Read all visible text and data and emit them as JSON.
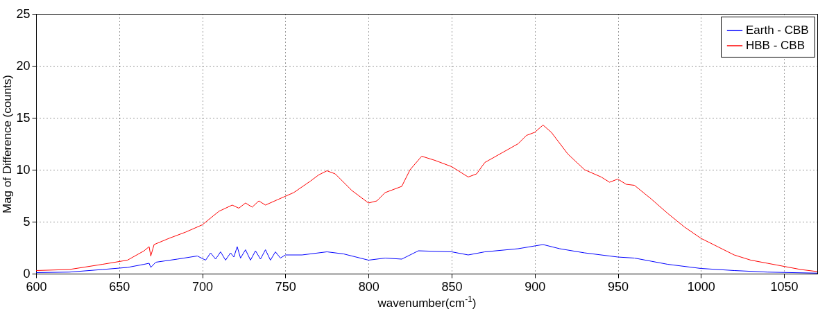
{
  "chart_data": {
    "type": "line",
    "xlabel": "wavenumber(cm$^{-1}$)",
    "ylabel": "Mag of Difference (counts)",
    "xlim": [
      600,
      1070
    ],
    "xticks": [
      600,
      650,
      700,
      750,
      800,
      850,
      900,
      950,
      1000,
      1050
    ],
    "ylim": [
      0,
      25
    ],
    "yticks": [
      0,
      5,
      10,
      15,
      20,
      25
    ],
    "grid": true,
    "legend": "top right",
    "line_style": "solid",
    "series": [
      {
        "name": "Earth - CBB",
        "color": "#0000ff",
        "x": [
          600,
          620,
          640,
          655,
          665,
          668,
          669,
          672,
          685,
          697,
          702,
          705,
          708,
          711,
          714,
          717,
          719,
          721,
          723,
          726,
          729,
          732,
          735,
          738,
          741,
          744,
          747,
          750,
          760,
          775,
          785,
          800,
          810,
          820,
          830,
          850,
          860,
          870,
          890,
          905,
          915,
          930,
          950,
          960,
          970,
          980,
          1000,
          1020,
          1040,
          1070
        ],
        "values": [
          0.1,
          0.15,
          0.4,
          0.6,
          0.9,
          1.0,
          0.6,
          1.1,
          1.4,
          1.7,
          1.3,
          2.0,
          1.4,
          2.1,
          1.3,
          2.0,
          1.6,
          2.6,
          1.5,
          2.3,
          1.3,
          2.2,
          1.4,
          2.3,
          1.3,
          2.1,
          1.5,
          1.8,
          1.8,
          2.1,
          1.9,
          1.3,
          1.5,
          1.4,
          2.2,
          2.1,
          1.8,
          2.1,
          2.4,
          2.8,
          2.4,
          2.0,
          1.6,
          1.5,
          1.2,
          0.9,
          0.5,
          0.3,
          0.15,
          0.05
        ]
      },
      {
        "name": "HBB - CBB",
        "color": "#ff0000",
        "x": [
          600,
          620,
          640,
          655,
          665,
          668,
          669,
          671,
          680,
          690,
          700,
          710,
          718,
          722,
          726,
          730,
          734,
          738,
          745,
          755,
          765,
          770,
          775,
          780,
          790,
          800,
          805,
          810,
          820,
          825,
          832,
          840,
          850,
          860,
          865,
          870,
          880,
          890,
          895,
          900,
          905,
          910,
          920,
          930,
          940,
          945,
          950,
          955,
          960,
          970,
          980,
          990,
          1000,
          1010,
          1020,
          1030,
          1040,
          1050,
          1060,
          1070
        ],
        "values": [
          0.3,
          0.4,
          0.9,
          1.3,
          2.2,
          2.6,
          1.7,
          2.8,
          3.4,
          4.0,
          4.7,
          6.0,
          6.6,
          6.3,
          6.8,
          6.4,
          7.0,
          6.6,
          7.1,
          7.8,
          8.9,
          9.5,
          9.9,
          9.6,
          8.0,
          6.8,
          7.0,
          7.8,
          8.4,
          10.0,
          11.3,
          10.9,
          10.3,
          9.3,
          9.6,
          10.7,
          11.6,
          12.5,
          13.3,
          13.6,
          14.3,
          13.6,
          11.5,
          10.0,
          9.3,
          8.8,
          9.1,
          8.6,
          8.5,
          7.2,
          5.8,
          4.5,
          3.4,
          2.6,
          1.8,
          1.3,
          1.0,
          0.7,
          0.4,
          0.2
        ]
      }
    ]
  }
}
